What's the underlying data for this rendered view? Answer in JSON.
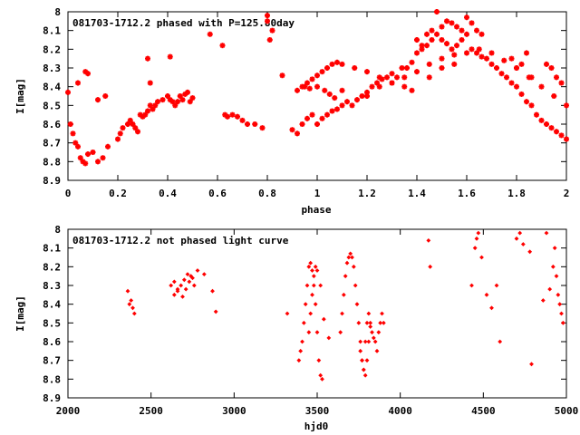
{
  "colors": {
    "points": "#ff0000",
    "frame": "#000000",
    "background": "#ffffff"
  },
  "chart_data": [
    {
      "type": "scatter",
      "title": "081703-1712.2 phased with P=125.80day",
      "xlabel": "phase",
      "ylabel": "I[mag]",
      "xlim": [
        0,
        2
      ],
      "ylim": [
        8,
        8.9
      ],
      "y_inverted": true,
      "xticks": [
        "0",
        "0.2",
        "0.4",
        "0.6",
        "0.8",
        "1",
        "1.2",
        "1.4",
        "1.6",
        "1.8",
        "2"
      ],
      "yticks": [
        "8",
        "8.1",
        "8.2",
        "8.3",
        "8.4",
        "8.5",
        "8.6",
        "8.7",
        "8.8",
        "8.9"
      ],
      "series": [
        {
          "marker": "star",
          "x": [
            0.0,
            0.01,
            0.02,
            0.03,
            0.04,
            0.05,
            0.06,
            0.07,
            0.08,
            0.1,
            0.12,
            0.14,
            0.16,
            0.2,
            0.21,
            0.22,
            0.24,
            0.25,
            0.26,
            0.27,
            0.28,
            0.29,
            0.3,
            0.31,
            0.32,
            0.33,
            0.34,
            0.35,
            0.36,
            0.38,
            0.4,
            0.41,
            0.42,
            0.43,
            0.44,
            0.45,
            0.46,
            0.47,
            0.48,
            0.49,
            0.5,
            0.08,
            0.07,
            0.04,
            0.12,
            0.15,
            0.32,
            0.33,
            0.41,
            0.57,
            0.62,
            0.63,
            0.64,
            0.66,
            0.68,
            0.7,
            0.72,
            0.75,
            0.78,
            0.8,
            0.82,
            0.8,
            0.81,
            0.86,
            0.9,
            0.92,
            0.94,
            0.96,
            0.98,
            1.0,
            1.02,
            1.04,
            1.06,
            1.08,
            1.1,
            1.12,
            1.14,
            1.16,
            1.18,
            1.2,
            1.22,
            1.24,
            1.26,
            1.28,
            1.3,
            1.32,
            1.34,
            1.36,
            1.38,
            1.4,
            1.42,
            1.44,
            1.46,
            1.48,
            1.5,
            1.52,
            1.54,
            1.56,
            1.58,
            1.6,
            1.62,
            1.64,
            1.66,
            1.68,
            1.7,
            1.72,
            1.74,
            1.76,
            1.78,
            1.8,
            1.82,
            1.84,
            1.86,
            1.88,
            1.9,
            1.92,
            1.94,
            1.96,
            1.98,
            2.0,
            0.94,
            0.96,
            0.98,
            1.0,
            1.02,
            1.04,
            1.06,
            1.08,
            1.1,
            0.92,
            0.95,
            0.97,
            1.0,
            1.03,
            1.05,
            1.07,
            1.1,
            1.2,
            1.25,
            1.3,
            1.35,
            1.4,
            1.45,
            1.5,
            1.55,
            1.6,
            1.65,
            1.7,
            1.75,
            1.8,
            1.85,
            1.9,
            1.95,
            2.0,
            1.48,
            1.52,
            1.56,
            1.6,
            1.62,
            1.64,
            1.66,
            1.78,
            1.8,
            1.82,
            1.84,
            1.86,
            1.92,
            1.94,
            1.96,
            1.98,
            1.4,
            1.42,
            1.44,
            1.46,
            1.5,
            1.54,
            1.58,
            1.15,
            1.2,
            1.25,
            1.3,
            1.35,
            1.38,
            1.45,
            1.5,
            1.55
          ],
          "y": [
            8.43,
            8.6,
            8.65,
            8.7,
            8.72,
            8.78,
            8.8,
            8.81,
            8.76,
            8.75,
            8.8,
            8.78,
            8.72,
            8.68,
            8.65,
            8.62,
            8.6,
            8.58,
            8.6,
            8.62,
            8.64,
            8.55,
            8.56,
            8.55,
            8.53,
            8.5,
            8.52,
            8.5,
            8.48,
            8.47,
            8.45,
            8.47,
            8.48,
            8.5,
            8.48,
            8.45,
            8.47,
            8.44,
            8.43,
            8.48,
            8.46,
            8.33,
            8.32,
            8.38,
            8.47,
            8.45,
            8.25,
            8.38,
            8.24,
            8.12,
            8.18,
            8.55,
            8.56,
            8.55,
            8.56,
            8.58,
            8.6,
            8.6,
            8.62,
            8.05,
            8.1,
            8.02,
            8.15,
            8.34,
            8.63,
            8.65,
            8.6,
            8.57,
            8.55,
            8.6,
            8.57,
            8.55,
            8.53,
            8.52,
            8.5,
            8.48,
            8.5,
            8.47,
            8.45,
            8.43,
            8.4,
            8.38,
            8.36,
            8.35,
            8.33,
            8.35,
            8.3,
            8.3,
            8.27,
            8.22,
            8.2,
            8.18,
            8.15,
            8.12,
            8.15,
            8.17,
            8.2,
            8.18,
            8.15,
            8.12,
            8.2,
            8.22,
            8.24,
            8.25,
            8.28,
            8.3,
            8.33,
            8.35,
            8.38,
            8.4,
            8.44,
            8.48,
            8.5,
            8.55,
            8.58,
            8.6,
            8.62,
            8.64,
            8.66,
            8.68,
            8.4,
            8.38,
            8.36,
            8.34,
            8.32,
            8.3,
            8.28,
            8.27,
            8.28,
            8.42,
            8.4,
            8.41,
            8.4,
            8.42,
            8.44,
            8.46,
            8.42,
            8.45,
            8.4,
            8.38,
            8.35,
            8.32,
            8.28,
            8.25,
            8.23,
            8.22,
            8.2,
            8.22,
            8.26,
            8.3,
            8.35,
            8.4,
            8.45,
            8.5,
            8.0,
            8.05,
            8.08,
            8.03,
            8.06,
            8.1,
            8.12,
            8.25,
            8.3,
            8.28,
            8.22,
            8.35,
            8.28,
            8.3,
            8.35,
            8.38,
            8.15,
            8.18,
            8.12,
            8.1,
            8.08,
            8.06,
            8.1,
            8.3,
            8.32,
            8.35,
            8.38,
            8.4,
            8.42,
            8.35,
            8.3,
            8.28
          ]
        }
      ]
    },
    {
      "type": "scatter",
      "title": "081703-1712.2 not phased light curve",
      "xlabel": "hjd0",
      "ylabel": "I[mag]",
      "xlim": [
        2000,
        5000
      ],
      "ylim": [
        8,
        8.9
      ],
      "y_inverted": true,
      "xticks": [
        "2000",
        "2500",
        "3000",
        "3500",
        "4000",
        "4500",
        "5000"
      ],
      "yticks": [
        "8",
        "8.1",
        "8.2",
        "8.3",
        "8.4",
        "8.5",
        "8.6",
        "8.7",
        "8.8",
        "8.9"
      ],
      "series": [
        {
          "marker": "diamond",
          "x": [
            2360,
            2370,
            2380,
            2390,
            2400,
            2620,
            2640,
            2660,
            2680,
            2700,
            2720,
            2740,
            2760,
            2640,
            2660,
            2690,
            2710,
            2730,
            2750,
            2780,
            2820,
            2870,
            2890,
            3320,
            3390,
            3400,
            3410,
            3420,
            3430,
            3440,
            3450,
            3460,
            3470,
            3480,
            3490,
            3500,
            3510,
            3520,
            3530,
            3450,
            3460,
            3470,
            3480,
            3490,
            3500,
            3520,
            3540,
            3570,
            3640,
            3650,
            3660,
            3670,
            3680,
            3690,
            3700,
            3710,
            3720,
            3730,
            3740,
            3750,
            3760,
            3770,
            3780,
            3790,
            3800,
            3810,
            3820,
            3830,
            3840,
            3850,
            3860,
            3870,
            3880,
            3890,
            3900,
            3760,
            3770,
            3780,
            3790,
            3800,
            3810,
            3820,
            4170,
            4180,
            4430,
            4450,
            4460,
            4470,
            4490,
            4520,
            4550,
            4580,
            4600,
            4700,
            4720,
            4740,
            4780,
            4790,
            4860,
            4880,
            4900,
            4920,
            4930,
            4940,
            4950,
            4960,
            4970,
            4980
          ],
          "y": [
            8.33,
            8.4,
            8.38,
            8.42,
            8.45,
            8.3,
            8.28,
            8.32,
            8.3,
            8.27,
            8.24,
            8.25,
            8.3,
            8.35,
            8.33,
            8.36,
            8.32,
            8.28,
            8.26,
            8.22,
            8.24,
            8.33,
            8.44,
            8.45,
            8.7,
            8.65,
            8.6,
            8.5,
            8.4,
            8.3,
            8.2,
            8.18,
            8.22,
            8.3,
            8.4,
            8.55,
            8.7,
            8.78,
            8.8,
            8.55,
            8.45,
            8.35,
            8.25,
            8.2,
            8.22,
            8.3,
            8.48,
            8.58,
            8.55,
            8.45,
            8.35,
            8.25,
            8.18,
            8.15,
            8.13,
            8.15,
            8.2,
            8.3,
            8.4,
            8.5,
            8.6,
            8.7,
            8.75,
            8.78,
            8.7,
            8.6,
            8.5,
            8.55,
            8.58,
            8.6,
            8.65,
            8.55,
            8.5,
            8.45,
            8.5,
            8.65,
            8.7,
            8.75,
            8.6,
            8.5,
            8.45,
            8.52,
            8.06,
            8.2,
            8.3,
            8.1,
            8.05,
            8.02,
            8.15,
            8.35,
            8.42,
            8.3,
            8.6,
            8.05,
            8.02,
            8.08,
            8.12,
            8.72,
            8.38,
            8.02,
            8.32,
            8.2,
            8.1,
            8.25,
            8.35,
            8.4,
            8.45,
            8.5
          ]
        }
      ]
    }
  ]
}
